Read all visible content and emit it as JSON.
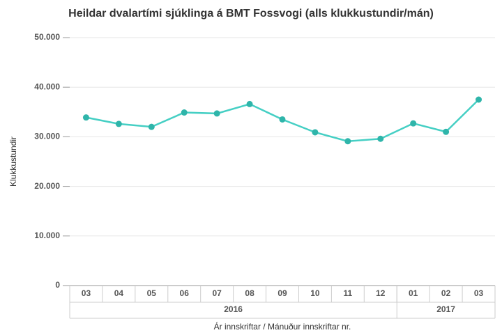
{
  "chart_data": {
    "type": "line",
    "title": "Heildar dvalartími sjúklinga á BMT Fossvogi (alls klukkustundir/mán)",
    "y_label": "Klukkustundir",
    "x_label": "Ár innskriftar / Mánuður innskriftar nr.",
    "groups": [
      {
        "label": "2016",
        "categories": [
          "03",
          "04",
          "05",
          "06",
          "07",
          "08",
          "09",
          "10",
          "11",
          "12"
        ]
      },
      {
        "label": "2017",
        "categories": [
          "01",
          "02",
          "03"
        ]
      }
    ],
    "series": [
      {
        "name": "Klukkustundir",
        "color": "#45cfc4",
        "marker_color": "#2fb5aa",
        "values": [
          33900,
          32600,
          32000,
          34900,
          34700,
          36600,
          33500,
          30900,
          29100,
          29600,
          32700,
          31000,
          37500
        ]
      }
    ],
    "ylim": [
      0,
      50000
    ],
    "yticks": [
      0,
      {
        "value": 10000,
        "label": "10.000"
      },
      {
        "value": 20000,
        "label": "20.000"
      },
      {
        "value": 30000,
        "label": "30.000"
      },
      {
        "value": 40000,
        "label": "40.000"
      },
      {
        "value": 50000,
        "label": "50.000"
      }
    ],
    "grid": true
  }
}
